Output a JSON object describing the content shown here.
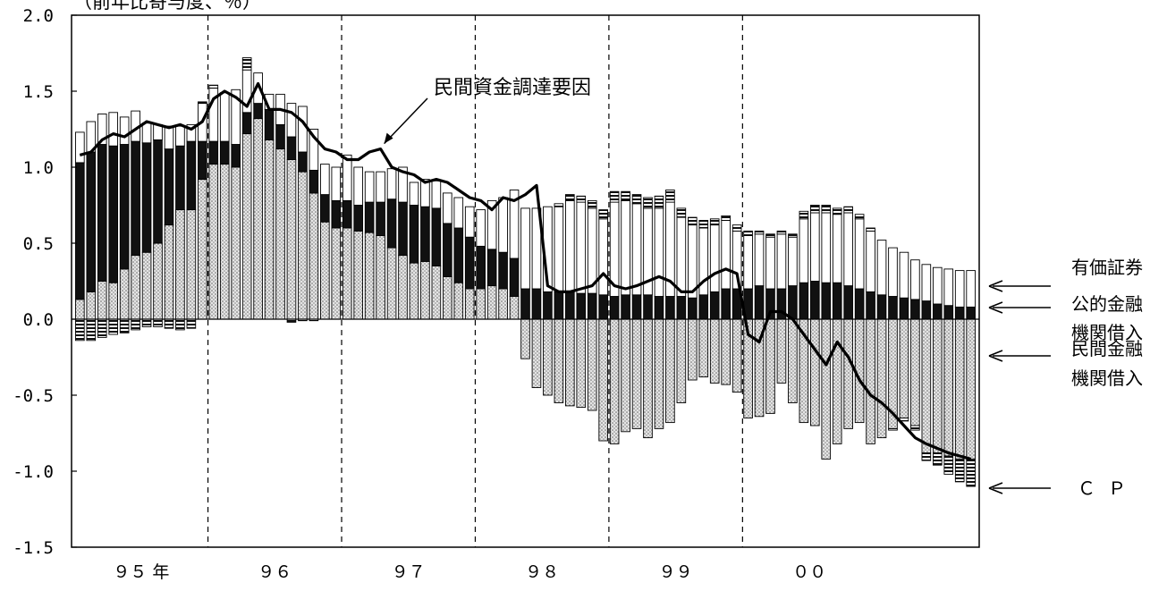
{
  "chart_data": {
    "type": "bar",
    "subtitle": "（前年比寄与度、％）",
    "ylim": [
      -1.5,
      2.0
    ],
    "y_ticks": [
      "2.0",
      "1.5",
      "1.0",
      "0.5",
      "0.0",
      "-0.5",
      "-1.0",
      "-1.5"
    ],
    "x_year_labels": [
      "９５ 年",
      "９６",
      "９７",
      "９８",
      "９９",
      "００"
    ],
    "months_per_year": 12,
    "line_annotation": "民間資金調達要因",
    "legend": [
      {
        "label": "有価証券",
        "pattern": "white"
      },
      {
        "label": "公的金融\n機関借入",
        "pattern": "black"
      },
      {
        "label": "民間金融\n機関借入",
        "pattern": "dotted"
      },
      {
        "label": "ＣＰ",
        "pattern": "hatched"
      }
    ],
    "series": [
      {
        "name": "民間金融\n機関借入",
        "values": [
          0.13,
          0.18,
          0.25,
          0.24,
          0.33,
          0.42,
          0.44,
          0.5,
          0.62,
          0.72,
          0.72,
          0.92,
          1.02,
          1.02,
          1.0,
          1.22,
          1.32,
          1.18,
          1.12,
          1.05,
          0.97,
          0.83,
          0.64,
          0.6,
          0.6,
          0.58,
          0.57,
          0.55,
          0.47,
          0.42,
          0.37,
          0.38,
          0.35,
          0.28,
          0.24,
          0.2,
          0.2,
          0.22,
          0.2,
          0.15,
          -0.26,
          -0.45,
          -0.5,
          -0.55,
          -0.57,
          -0.58,
          -0.6,
          -0.8,
          -0.82,
          -0.74,
          -0.72,
          -0.78,
          -0.72,
          -0.68,
          -0.55,
          -0.4,
          -0.38,
          -0.42,
          -0.43,
          -0.48,
          -0.65,
          -0.64,
          -0.62,
          -0.42,
          -0.55,
          -0.68,
          -0.7,
          -0.92,
          -0.82,
          -0.72,
          -0.68,
          -0.82,
          -0.78,
          -0.72,
          -0.65,
          -0.7,
          -0.88,
          -0.88,
          -0.9,
          -0.92,
          -0.92
        ]
      },
      {
        "name": "公的金融\n機関借入",
        "values": [
          0.9,
          0.92,
          0.9,
          0.9,
          0.82,
          0.75,
          0.72,
          0.68,
          0.5,
          0.42,
          0.45,
          0.25,
          0.15,
          0.15,
          0.15,
          0.14,
          0.1,
          0.2,
          0.16,
          0.15,
          0.13,
          0.15,
          0.18,
          0.18,
          0.18,
          0.17,
          0.2,
          0.22,
          0.32,
          0.35,
          0.38,
          0.36,
          0.38,
          0.35,
          0.36,
          0.34,
          0.28,
          0.24,
          0.24,
          0.25,
          0.2,
          0.2,
          0.18,
          0.18,
          0.18,
          0.17,
          0.17,
          0.16,
          0.15,
          0.16,
          0.16,
          0.16,
          0.15,
          0.15,
          0.15,
          0.14,
          0.16,
          0.18,
          0.2,
          0.2,
          0.2,
          0.22,
          0.2,
          0.2,
          0.22,
          0.24,
          0.25,
          0.24,
          0.24,
          0.22,
          0.2,
          0.18,
          0.16,
          0.15,
          0.14,
          0.13,
          0.12,
          0.1,
          0.09,
          0.08,
          0.08
        ]
      },
      {
        "name": "有価証券",
        "values": [
          0.2,
          0.2,
          0.2,
          0.22,
          0.18,
          0.2,
          0.13,
          0.1,
          0.15,
          0.13,
          0.11,
          0.25,
          0.35,
          0.32,
          0.36,
          0.28,
          0.2,
          0.1,
          0.2,
          0.22,
          0.3,
          0.27,
          0.2,
          0.22,
          0.3,
          0.25,
          0.2,
          0.2,
          0.2,
          0.23,
          0.15,
          0.18,
          0.18,
          0.2,
          0.2,
          0.2,
          0.24,
          0.32,
          0.36,
          0.45,
          0.53,
          0.53,
          0.56,
          0.56,
          0.6,
          0.6,
          0.56,
          0.5,
          0.62,
          0.62,
          0.6,
          0.57,
          0.58,
          0.62,
          0.52,
          0.48,
          0.44,
          0.44,
          0.45,
          0.38,
          0.35,
          0.34,
          0.34,
          0.36,
          0.32,
          0.42,
          0.45,
          0.46,
          0.45,
          0.48,
          0.46,
          0.4,
          0.36,
          0.32,
          0.3,
          0.26,
          0.24,
          0.24,
          0.24,
          0.24,
          0.24
        ]
      },
      {
        "name": "ＣＰ",
        "values": [
          -0.14,
          -0.14,
          -0.12,
          -0.1,
          -0.09,
          -0.07,
          -0.05,
          -0.05,
          -0.06,
          -0.07,
          -0.06,
          0.01,
          0.02,
          0.0,
          0.0,
          0.08,
          0.0,
          0.0,
          0.0,
          -0.02,
          -0.01,
          -0.01,
          0.0,
          0.0,
          0.0,
          0.0,
          0.0,
          0.0,
          0.0,
          0.0,
          0.0,
          0.0,
          0.0,
          0.0,
          0.0,
          0.0,
          0.0,
          0.0,
          0.0,
          0.0,
          0.0,
          0.0,
          0.0,
          0.02,
          0.04,
          0.04,
          0.05,
          0.06,
          0.07,
          0.06,
          0.06,
          0.07,
          0.08,
          0.08,
          0.06,
          0.05,
          0.05,
          0.04,
          0.03,
          0.04,
          0.03,
          0.02,
          0.02,
          0.02,
          0.02,
          0.05,
          0.05,
          0.05,
          0.04,
          0.04,
          0.03,
          0.02,
          0.0,
          -0.01,
          -0.02,
          -0.03,
          -0.05,
          -0.08,
          -0.12,
          -0.15,
          -0.18
        ]
      },
      {
        "name": "民間資金調達要因",
        "values": [
          1.08,
          1.1,
          1.18,
          1.22,
          1.2,
          1.25,
          1.3,
          1.28,
          1.26,
          1.28,
          1.25,
          1.3,
          1.45,
          1.5,
          1.46,
          1.4,
          1.55,
          1.38,
          1.38,
          1.36,
          1.3,
          1.2,
          1.12,
          1.1,
          1.05,
          1.05,
          1.1,
          1.12,
          1.0,
          0.97,
          0.95,
          0.9,
          0.92,
          0.9,
          0.85,
          0.8,
          0.78,
          0.72,
          0.8,
          0.78,
          0.82,
          0.88,
          0.22,
          0.18,
          0.18,
          0.2,
          0.22,
          0.3,
          0.22,
          0.2,
          0.22,
          0.25,
          0.28,
          0.25,
          0.18,
          0.18,
          0.25,
          0.3,
          0.33,
          0.3,
          -0.1,
          -0.15,
          0.05,
          0.05,
          0.0,
          -0.1,
          -0.2,
          -0.3,
          -0.15,
          -0.25,
          -0.4,
          -0.5,
          -0.55,
          -0.62,
          -0.7,
          -0.78,
          -0.82,
          -0.85,
          -0.88,
          -0.9,
          -0.92
        ]
      }
    ]
  }
}
